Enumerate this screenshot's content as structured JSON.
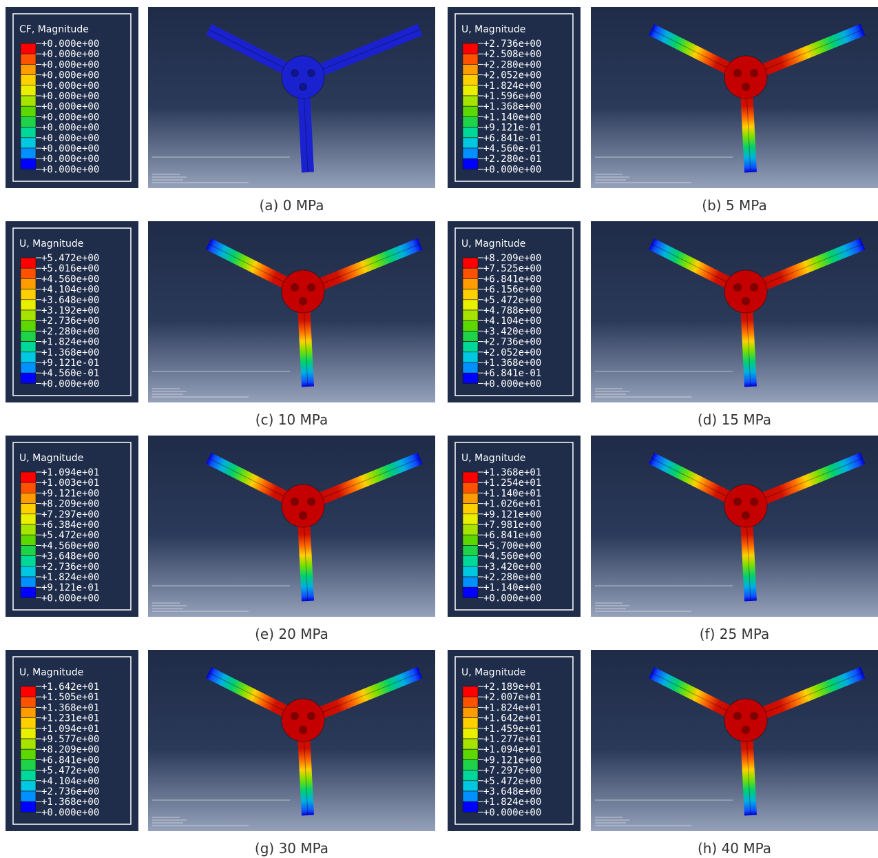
{
  "panels": [
    {
      "legend_title": "CF, Magnitude",
      "legend_values": [
        "+0.000e+00",
        "+0.000e+00",
        "+0.000e+00",
        "+0.000e+00",
        "+0.000e+00",
        "+0.000e+00",
        "+0.000e+00",
        "+0.000e+00",
        "+0.000e+00",
        "+0.000e+00",
        "+0.000e+00",
        "+0.000e+00",
        "+0.000e+00"
      ],
      "caption": "(a) 0 MPa"
    },
    {
      "legend_title": "U, Magnitude",
      "legend_values": [
        "+2.736e+00",
        "+2.508e+00",
        "+2.280e+00",
        "+2.052e+00",
        "+1.824e+00",
        "+1.596e+00",
        "+1.368e+00",
        "+1.140e+00",
        "+9.121e-01",
        "+6.841e-01",
        "+4.560e-01",
        "+2.280e-01",
        "+0.000e+00"
      ],
      "caption": "(b) 5 MPa"
    },
    {
      "legend_title": "U, Magnitude",
      "legend_values": [
        "+5.472e+00",
        "+5.016e+00",
        "+4.560e+00",
        "+4.104e+00",
        "+3.648e+00",
        "+3.192e+00",
        "+2.736e+00",
        "+2.280e+00",
        "+1.824e+00",
        "+1.368e+00",
        "+9.121e-01",
        "+4.560e-01",
        "+0.000e+00"
      ],
      "caption": "(c) 10 MPa"
    },
    {
      "legend_title": "U, Magnitude",
      "legend_values": [
        "+8.209e+00",
        "+7.525e+00",
        "+6.841e+00",
        "+6.156e+00",
        "+5.472e+00",
        "+4.788e+00",
        "+4.104e+00",
        "+3.420e+00",
        "+2.736e+00",
        "+2.052e+00",
        "+1.368e+00",
        "+6.841e-01",
        "+0.000e+00"
      ],
      "caption": "(d) 15 MPa"
    },
    {
      "legend_title": "U, Magnitude",
      "legend_values": [
        "+1.094e+01",
        "+1.003e+01",
        "+9.121e+00",
        "+8.209e+00",
        "+7.297e+00",
        "+6.384e+00",
        "+5.472e+00",
        "+4.560e+00",
        "+3.648e+00",
        "+2.736e+00",
        "+1.824e+00",
        "+9.121e-01",
        "+0.000e+00"
      ],
      "caption": "(e) 20 MPa"
    },
    {
      "legend_title": "U, Magnitude",
      "legend_values": [
        "+1.368e+01",
        "+1.254e+01",
        "+1.140e+01",
        "+1.026e+01",
        "+9.121e+00",
        "+7.981e+00",
        "+6.841e+00",
        "+5.700e+00",
        "+4.560e+00",
        "+3.420e+00",
        "+2.280e+00",
        "+1.140e+00",
        "+0.000e+00"
      ],
      "caption": "(f) 25 MPa"
    },
    {
      "legend_title": "U, Magnitude",
      "legend_values": [
        "+1.642e+01",
        "+1.505e+01",
        "+1.368e+01",
        "+1.231e+01",
        "+1.094e+01",
        "+9.577e+00",
        "+8.209e+00",
        "+6.841e+00",
        "+5.472e+00",
        "+4.104e+00",
        "+2.736e+00",
        "+1.368e+00",
        "+0.000e+00"
      ],
      "caption": "(g) 30 MPa"
    },
    {
      "legend_title": "U, Magnitude",
      "legend_values": [
        "+2.189e+01",
        "+2.007e+01",
        "+1.824e+01",
        "+1.642e+01",
        "+1.459e+01",
        "+1.277e+01",
        "+1.094e+01",
        "+9.121e+00",
        "+7.297e+00",
        "+5.472e+00",
        "+3.648e+00",
        "+1.824e+00",
        "+0.000e+00"
      ],
      "caption": "(h) 40 MPa"
    }
  ]
}
